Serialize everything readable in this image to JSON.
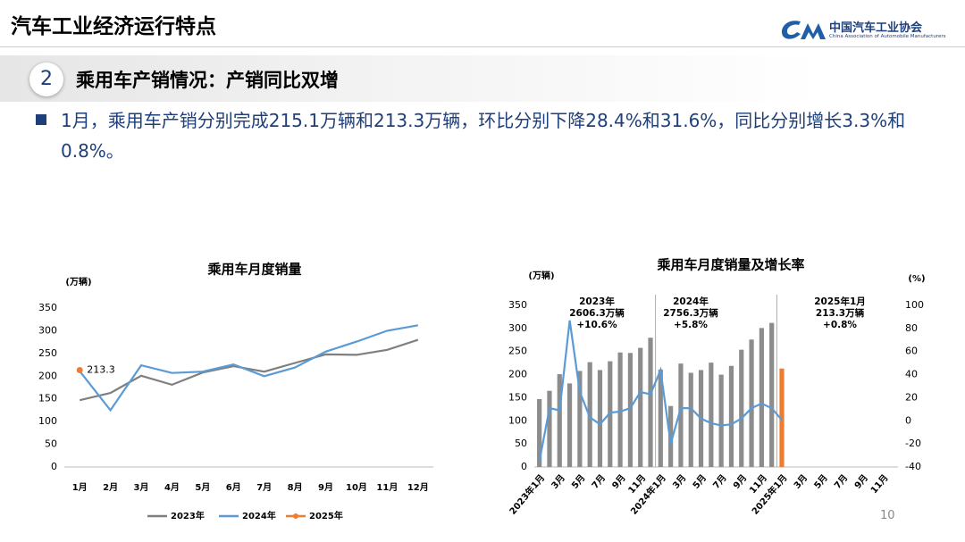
{
  "header": {
    "title": "汽车工业经济运行特点",
    "logo_cn": "中国汽车工业协会",
    "logo_en": "China Association of Automobile Manufacturers"
  },
  "section": {
    "number": "2",
    "title": "乘用车产销情况：产销同比双增"
  },
  "bullet": "1月，乘用车产销分别完成215.1万辆和213.3万辆，环比分别下降28.4%和31.6%，同比分别增长3.3%和0.8%。",
  "page_number": "10",
  "chart_data": [
    {
      "type": "line",
      "title": "乘用车月度销量",
      "y_label": "(万辆)",
      "categories": [
        "1月",
        "2月",
        "3月",
        "4月",
        "5月",
        "6月",
        "7月",
        "8月",
        "9月",
        "10月",
        "11月",
        "12月"
      ],
      "series": [
        {
          "name": "2023年",
          "color": "#7f7f7f",
          "values": [
            147,
            163,
            201,
            181,
            208,
            222,
            210,
            229,
            248,
            247,
            258,
            280
          ]
        },
        {
          "name": "2024年",
          "color": "#5b9bd5",
          "values": [
            211,
            125,
            224,
            207,
            210,
            226,
            200,
            219,
            254,
            276,
            300,
            312
          ]
        },
        {
          "name": "2025年",
          "color": "#ed7d31",
          "values": [
            213.3,
            null,
            null,
            null,
            null,
            null,
            null,
            null,
            null,
            null,
            null,
            null
          ]
        }
      ],
      "ylim": [
        0,
        350
      ],
      "yticks": [
        0,
        50,
        100,
        150,
        200,
        250,
        300,
        350
      ],
      "legend": "bottom",
      "grid": false
    },
    {
      "type": "bar",
      "title": "乘用车月度销量及增长率",
      "y_label": "(万辆)",
      "y2_label": "(%)",
      "categories": [
        "2023年1月",
        null,
        "3月",
        null,
        "5月",
        null,
        "7月",
        null,
        "9月",
        null,
        "11月",
        null,
        "2024年1月",
        null,
        "3月",
        null,
        "5月",
        null,
        "7月",
        null,
        "9月",
        null,
        "11月",
        null,
        "2025年1月",
        null,
        "3月",
        null,
        "5月",
        null,
        "7月",
        null,
        "9月",
        null,
        "11月",
        null
      ],
      "series": [
        {
          "type": "bar",
          "color": "#8c8c8c",
          "values": [
            147,
            165,
            201,
            181,
            208,
            227,
            210,
            229,
            248,
            247,
            258,
            280,
            211,
            132,
            224,
            204,
            210,
            226,
            200,
            219,
            254,
            276,
            301,
            312,
            null,
            null,
            null,
            null,
            null,
            null,
            null,
            null,
            null,
            null,
            null,
            null
          ]
        },
        {
          "type": "bar",
          "color": "#ed7d31",
          "values": [
            null,
            null,
            null,
            null,
            null,
            null,
            null,
            null,
            null,
            null,
            null,
            null,
            null,
            null,
            null,
            null,
            null,
            null,
            null,
            null,
            null,
            null,
            null,
            null,
            213.3,
            null,
            null,
            null,
            null,
            null,
            null,
            null,
            null,
            null,
            null,
            null
          ]
        },
        {
          "type": "line",
          "axis": "y2",
          "color": "#5b9bd5",
          "values": [
            -35,
            11,
            9,
            87,
            25,
            3,
            -3,
            7,
            8,
            11,
            25,
            23,
            44,
            -20,
            11,
            11,
            2,
            -2,
            -4,
            -3,
            2,
            11,
            15,
            11,
            0.8,
            null,
            null,
            null,
            null,
            null,
            null,
            null,
            null,
            null,
            null,
            null
          ]
        }
      ],
      "annotations": [
        [
          "2023年",
          "2606.3万辆",
          "+10.6%"
        ],
        [
          "2024年",
          "2756.3万辆",
          "+5.8%"
        ],
        [
          "2025年1月",
          "213.3万辆",
          "+0.8%"
        ]
      ],
      "ylim": [
        0,
        350
      ],
      "yticks": [
        0,
        50,
        100,
        150,
        200,
        250,
        300,
        350
      ],
      "y2lim": [
        -40,
        100
      ],
      "y2ticks": [
        -40,
        -20,
        0,
        20,
        40,
        60,
        80,
        100
      ],
      "grid": false
    }
  ]
}
